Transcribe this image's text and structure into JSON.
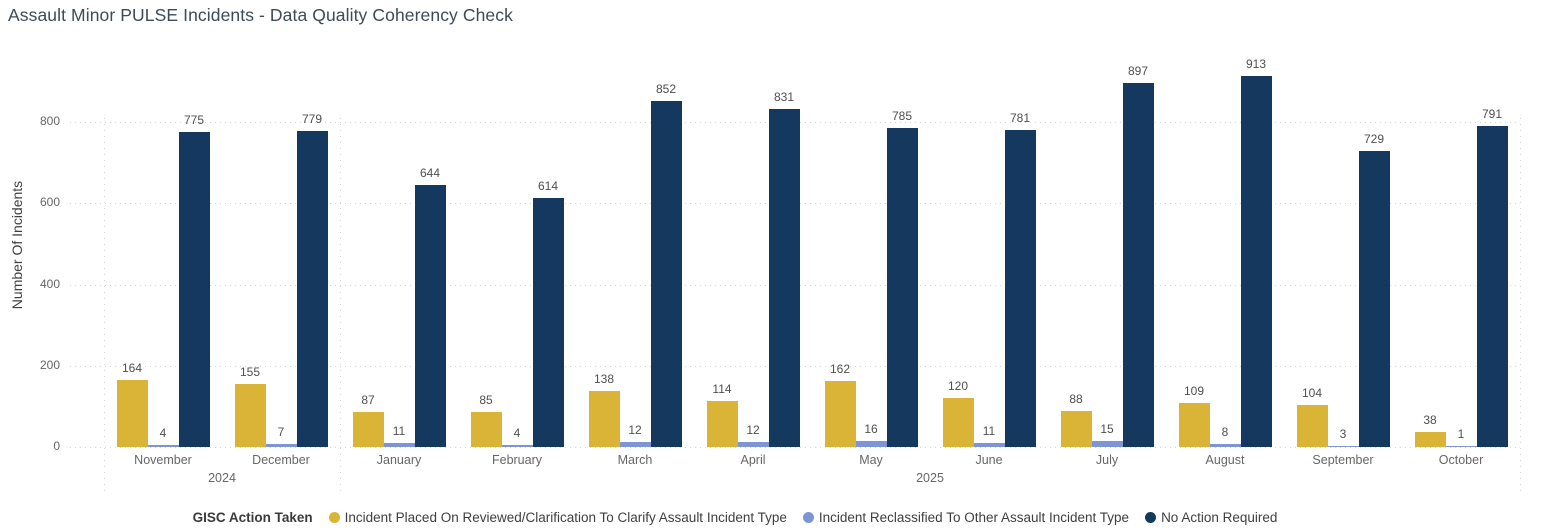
{
  "title": "Assault Minor PULSE Incidents - Data Quality Coherency Check",
  "y_axis": {
    "title": "Number Of Incidents",
    "ticks": [
      0,
      200,
      400,
      600,
      800
    ]
  },
  "legend": {
    "title": "GISC Action Taken",
    "items": [
      {
        "label": "Incident Placed On Reviewed/Clarification To Clarify Assault Incident Type",
        "color": "#D9B437"
      },
      {
        "label": "Incident Reclassified To Other Assault Incident Type",
        "color": "#7D96D3"
      },
      {
        "label": "No Action Required",
        "color": "#15395E"
      }
    ]
  },
  "chart_data": {
    "type": "bar",
    "title": "Assault Minor PULSE Incidents - Data Quality Coherency Check",
    "xlabel": "",
    "ylabel": "Number Of Incidents",
    "ylim": [
      0,
      950
    ],
    "grid": "horizontal-dotted",
    "legend_position": "bottom",
    "categories": [
      "November",
      "December",
      "January",
      "February",
      "March",
      "April",
      "May",
      "June",
      "July",
      "August",
      "September",
      "October"
    ],
    "year_groups": [
      {
        "label": "2024",
        "start_index": 0,
        "end_index": 2
      },
      {
        "label": "2025",
        "start_index": 2,
        "end_index": 12
      }
    ],
    "series": [
      {
        "name": "Incident Placed On Reviewed/Clarification To Clarify Assault Incident Type",
        "color": "#D9B437",
        "values": [
          164,
          155,
          87,
          85,
          138,
          114,
          162,
          120,
          88,
          109,
          104,
          38
        ]
      },
      {
        "name": "Incident Reclassified To Other Assault Incident Type",
        "color": "#7D96D3",
        "values": [
          4,
          7,
          11,
          4,
          12,
          12,
          16,
          11,
          15,
          8,
          3,
          1
        ]
      },
      {
        "name": "No Action Required",
        "color": "#15395E",
        "values": [
          775,
          779,
          644,
          614,
          852,
          831,
          785,
          781,
          897,
          913,
          729,
          791
        ]
      }
    ]
  }
}
